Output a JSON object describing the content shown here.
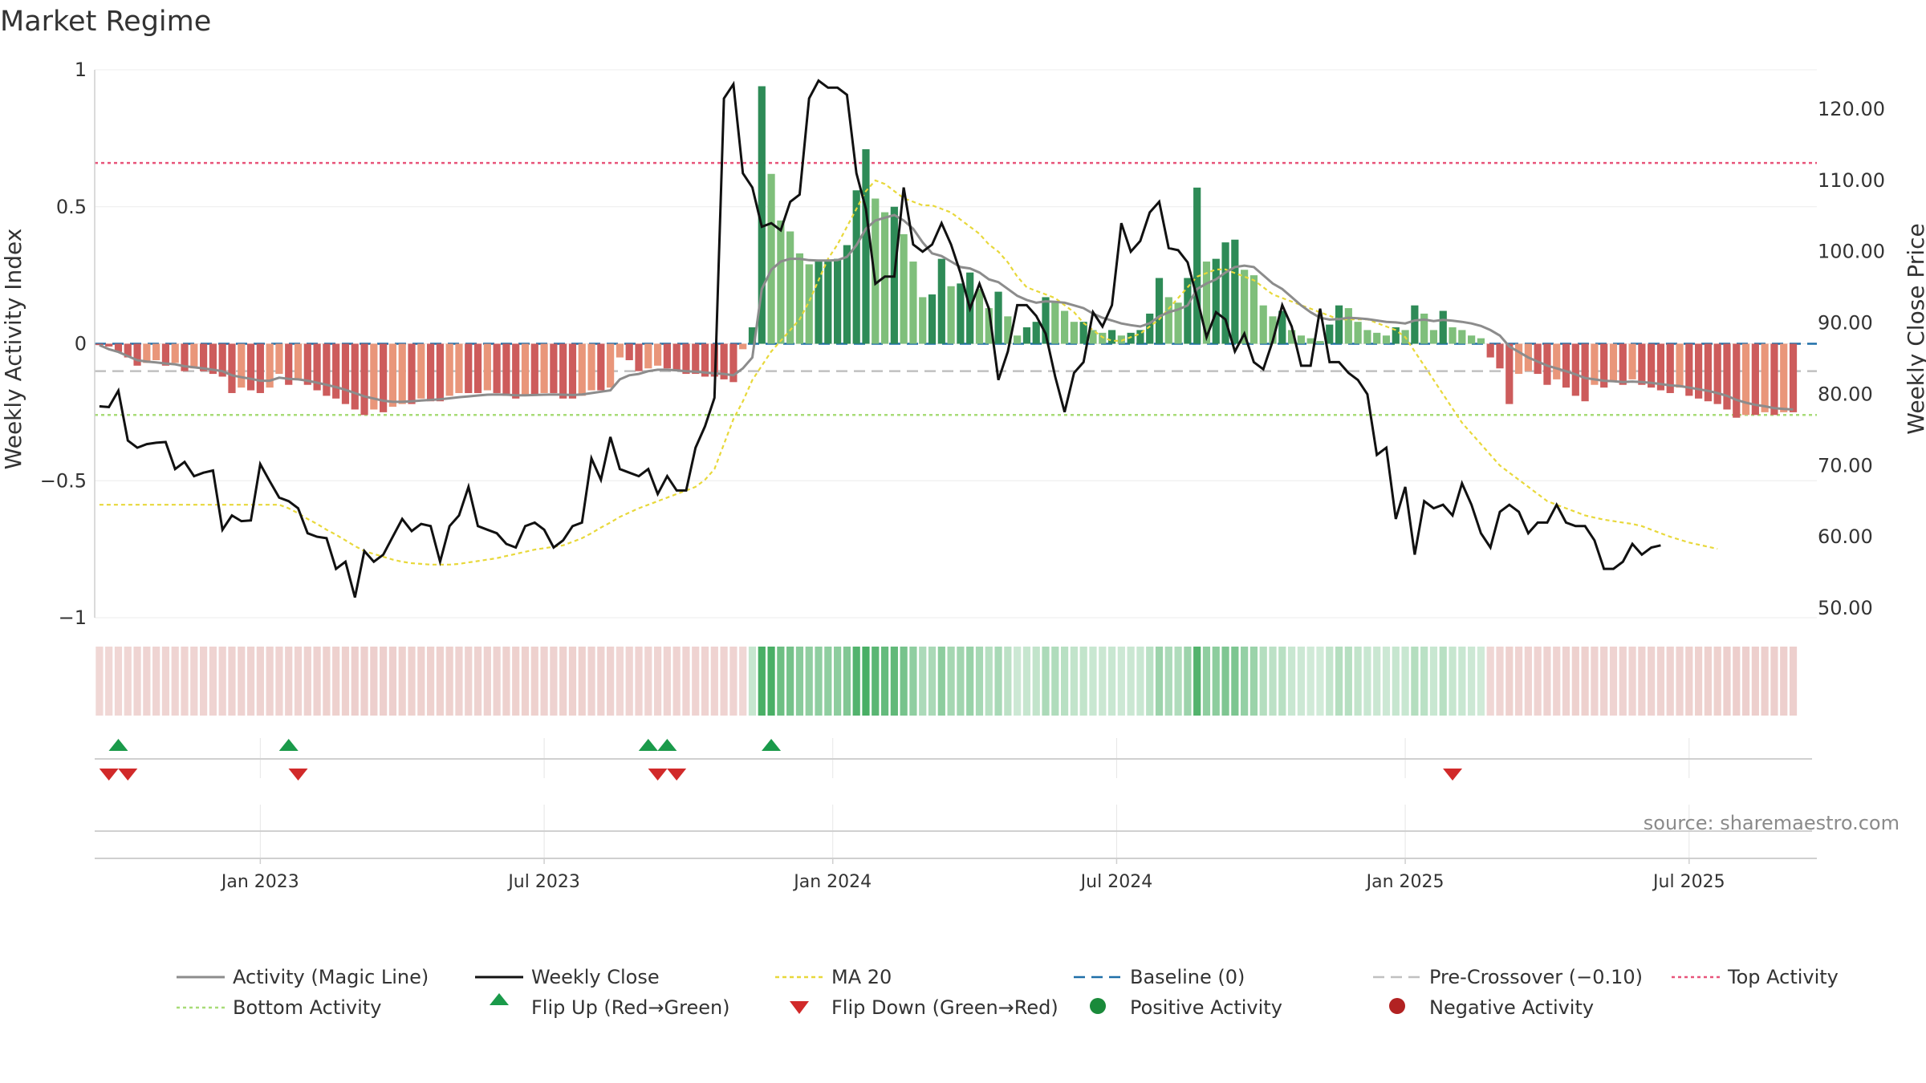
{
  "chart_data": {
    "type": "bar",
    "title": "Market Regime",
    "ylabel_left": "Weekly Activity Index",
    "ylabel_right": "Weekly Close Price",
    "ylim_left": [
      -1,
      1
    ],
    "ylim_right": [
      48,
      125
    ],
    "left_ticks": [
      "1",
      "0.5",
      "0",
      "−0.5",
      "−1"
    ],
    "left_tick_values": [
      1,
      0.5,
      0,
      -0.5,
      -1
    ],
    "right_ticks": [
      "120.00",
      "110.00",
      "100.00",
      "90.00",
      "80.00",
      "70.00",
      "60.00",
      "50.00"
    ],
    "right_tick_values": [
      120,
      110,
      100,
      90,
      80,
      70,
      60,
      50
    ],
    "x_ticks": [
      "Jan 2023",
      "Jul 2023",
      "Jan 2024",
      "Jul 2024",
      "Jan 2025",
      "Jul 2025"
    ],
    "x_tick_weeks": [
      17.5,
      47.5,
      78,
      108,
      138.5,
      168.5
    ],
    "n_weeks": 182,
    "activity_index": [
      -0.005,
      -0.01,
      -0.03,
      -0.05,
      -0.08,
      -0.07,
      -0.06,
      -0.08,
      -0.07,
      -0.1,
      -0.09,
      -0.1,
      -0.11,
      -0.12,
      -0.18,
      -0.16,
      -0.17,
      -0.18,
      -0.16,
      -0.11,
      -0.15,
      -0.13,
      -0.15,
      -0.17,
      -0.19,
      -0.2,
      -0.22,
      -0.24,
      -0.26,
      -0.24,
      -0.25,
      -0.23,
      -0.22,
      -0.22,
      -0.2,
      -0.21,
      -0.21,
      -0.19,
      -0.18,
      -0.18,
      -0.18,
      -0.17,
      -0.18,
      -0.19,
      -0.2,
      -0.19,
      -0.19,
      -0.18,
      -0.18,
      -0.2,
      -0.2,
      -0.19,
      -0.17,
      -0.17,
      -0.16,
      -0.05,
      -0.06,
      -0.1,
      -0.09,
      -0.08,
      -0.09,
      -0.1,
      -0.11,
      -0.11,
      -0.12,
      -0.12,
      -0.13,
      -0.14,
      -0.02,
      0.06,
      0.94,
      0.62,
      0.45,
      0.41,
      0.33,
      0.29,
      0.3,
      0.3,
      0.31,
      0.36,
      0.56,
      0.71,
      0.53,
      0.48,
      0.5,
      0.4,
      0.3,
      0.17,
      0.18,
      0.31,
      0.21,
      0.22,
      0.26,
      0.2,
      0.13,
      0.19,
      0.1,
      0.03,
      0.06,
      0.08,
      0.17,
      0.15,
      0.12,
      0.08,
      0.08,
      0.05,
      0.04,
      0.05,
      0.03,
      0.04,
      0.05,
      0.11,
      0.24,
      0.17,
      0.15,
      0.24,
      0.57,
      0.3,
      0.31,
      0.37,
      0.38,
      0.27,
      0.25,
      0.14,
      0.1,
      0.12,
      0.05,
      0.03,
      0.02,
      0.01,
      0.07,
      0.14,
      0.13,
      0.08,
      0.05,
      0.04,
      0.03,
      0.06,
      0.05,
      0.14,
      0.11,
      0.05,
      0.12,
      0.06,
      0.05,
      0.03,
      0.02,
      -0.05,
      -0.09,
      -0.22,
      -0.11,
      -0.1,
      -0.11,
      -0.15,
      -0.13,
      -0.16,
      -0.19,
      -0.21,
      -0.15,
      -0.16,
      -0.14,
      -0.15,
      -0.13,
      -0.15,
      -0.16,
      -0.17,
      -0.18,
      -0.16,
      -0.19,
      -0.2,
      -0.21,
      -0.22,
      -0.24,
      -0.27,
      -0.26,
      -0.26,
      -0.25,
      -0.26,
      -0.25,
      -0.25
    ],
    "magic_line": [
      -0.005,
      -0.02,
      -0.03,
      -0.045,
      -0.06,
      -0.065,
      -0.068,
      -0.072,
      -0.075,
      -0.082,
      -0.086,
      -0.09,
      -0.095,
      -0.1,
      -0.115,
      -0.122,
      -0.128,
      -0.135,
      -0.135,
      -0.124,
      -0.128,
      -0.13,
      -0.135,
      -0.142,
      -0.15,
      -0.158,
      -0.168,
      -0.18,
      -0.192,
      -0.2,
      -0.208,
      -0.212,
      -0.212,
      -0.21,
      -0.207,
      -0.205,
      -0.203,
      -0.199,
      -0.195,
      -0.192,
      -0.189,
      -0.186,
      -0.185,
      -0.186,
      -0.188,
      -0.188,
      -0.187,
      -0.186,
      -0.185,
      -0.186,
      -0.187,
      -0.185,
      -0.18,
      -0.175,
      -0.17,
      -0.13,
      -0.115,
      -0.11,
      -0.1,
      -0.095,
      -0.095,
      -0.097,
      -0.1,
      -0.102,
      -0.105,
      -0.108,
      -0.11,
      -0.115,
      -0.09,
      -0.05,
      0.2,
      0.27,
      0.3,
      0.31,
      0.31,
      0.305,
      0.304,
      0.304,
      0.305,
      0.317,
      0.36,
      0.42,
      0.45,
      0.46,
      0.47,
      0.45,
      0.42,
      0.37,
      0.33,
      0.32,
      0.3,
      0.28,
      0.275,
      0.26,
      0.235,
      0.225,
      0.2,
      0.175,
      0.16,
      0.15,
      0.155,
      0.153,
      0.15,
      0.14,
      0.13,
      0.11,
      0.095,
      0.085,
      0.074,
      0.068,
      0.063,
      0.075,
      0.1,
      0.115,
      0.125,
      0.14,
      0.2,
      0.22,
      0.235,
      0.26,
      0.28,
      0.285,
      0.28,
      0.25,
      0.22,
      0.2,
      0.17,
      0.14,
      0.115,
      0.095,
      0.088,
      0.09,
      0.095,
      0.093,
      0.09,
      0.085,
      0.08,
      0.078,
      0.074,
      0.085,
      0.088,
      0.083,
      0.087,
      0.084,
      0.08,
      0.074,
      0.065,
      0.05,
      0.03,
      -0.01,
      -0.03,
      -0.05,
      -0.065,
      -0.08,
      -0.09,
      -0.1,
      -0.112,
      -0.125,
      -0.13,
      -0.135,
      -0.137,
      -0.14,
      -0.138,
      -0.14,
      -0.143,
      -0.147,
      -0.152,
      -0.154,
      -0.16,
      -0.166,
      -0.172,
      -0.18,
      -0.19,
      -0.205,
      -0.215,
      -0.223,
      -0.228,
      -0.235,
      -0.238,
      -0.24
    ],
    "weekly_close": [
      78.3,
      78.2,
      80.5,
      73.5,
      72.5,
      73,
      73.2,
      73.3,
      69.5,
      70.5,
      68.5,
      69,
      69.3,
      61,
      63,
      62.2,
      62.3,
      70.2,
      67.8,
      65.5,
      65,
      64,
      60.5,
      60,
      59.8,
      55.5,
      56.5,
      51.5,
      58,
      56.5,
      57.5,
      60,
      62.5,
      60.8,
      61.8,
      61.5,
      56.5,
      61.5,
      63,
      67,
      61.5,
      61,
      60.5,
      59,
      58.5,
      61.5,
      62,
      61,
      58.5,
      59.5,
      61.5,
      62,
      71,
      68,
      74,
      69.5,
      69,
      68.5,
      69.5,
      66,
      68.5,
      66.5,
      66.5,
      72.5,
      75.5,
      79.5,
      121.5,
      123.5,
      111,
      109,
      103.5,
      104,
      103,
      107,
      108,
      121.5,
      124,
      123,
      123,
      122,
      111,
      106,
      95.5,
      96.5,
      96.5,
      109,
      101,
      100,
      101,
      104,
      101,
      97,
      92,
      95.5,
      92,
      82,
      86,
      92.5,
      92.5,
      91,
      88.5,
      82.5,
      77.5,
      83,
      84.5,
      91.5,
      89.5,
      92.5,
      104,
      100,
      101.5,
      105.5,
      107,
      100.5,
      100.2,
      98.5,
      93.5,
      88,
      91.5,
      90.5,
      86,
      88.5,
      84.5,
      83.5,
      87.5,
      92.5,
      89.5,
      84,
      84,
      92,
      84.5,
      84.5,
      83,
      82,
      80,
      71.5,
      72.5,
      62.5,
      67,
      57.5,
      65,
      64,
      64.5,
      63,
      67.5,
      64.5,
      60.5,
      58.5,
      63.5,
      64.5,
      63.5,
      60.5,
      62,
      62,
      64.5,
      62,
      61.5,
      61.5,
      59.5,
      55.5,
      55.5,
      56.5,
      59,
      57.5,
      58.5,
      58.8
    ],
    "ma20": [
      64.5,
      64.5,
      64.5,
      64.5,
      64.5,
      64.5,
      64.5,
      64.5,
      64.5,
      64.5,
      64.5,
      64.5,
      64.5,
      64.5,
      64.5,
      64.5,
      64.5,
      64.5,
      64.5,
      64.5,
      64,
      63.3,
      62.5,
      61.8,
      61,
      60.3,
      59.5,
      58.7,
      58,
      57.6,
      57.2,
      56.8,
      56.5,
      56.3,
      56.2,
      56.1,
      56.1,
      56.1,
      56.2,
      56.4,
      56.6,
      56.8,
      57,
      57.3,
      57.6,
      57.9,
      58.2,
      58.4,
      58.6,
      58.8,
      59.3,
      59.8,
      60.5,
      61.3,
      62,
      62.8,
      63.4,
      64,
      64.5,
      65,
      65.5,
      66,
      66.5,
      67,
      68,
      69.5,
      73,
      76.5,
      79,
      82,
      84,
      86,
      87.5,
      89,
      90.5,
      93,
      96,
      99,
      101,
      103.5,
      106,
      108.5,
      110,
      109.5,
      108.5,
      107.5,
      107,
      106.5,
      106.5,
      106,
      105.5,
      104.5,
      103.5,
      102.5,
      101,
      100,
      98.5,
      96.5,
      95,
      94.5,
      94,
      93.5,
      92.5,
      91.5,
      90,
      89,
      88,
      87.5,
      87.5,
      88,
      88.5,
      89.5,
      90.5,
      92,
      93.5,
      95,
      96.5,
      97,
      97.5,
      97.5,
      97,
      96.5,
      96,
      95,
      94,
      93.5,
      93,
      92.5,
      92,
      91.5,
      91,
      90.5,
      90.5,
      90.5,
      90.5,
      90,
      89.5,
      89,
      88,
      86,
      84,
      82,
      80,
      78,
      76,
      74.5,
      73,
      71.5,
      70,
      69,
      68,
      67,
      66,
      65,
      64.5,
      64,
      63.5,
      63,
      62.7,
      62.4,
      62.2,
      62,
      61.8,
      61.5,
      61,
      60.5,
      60,
      59.6,
      59.2,
      58.9,
      58.6,
      58.3
    ],
    "flip_up_weeks": [
      2,
      20,
      58,
      60,
      71
    ],
    "flip_down_weeks": [
      1,
      3,
      21,
      59,
      61,
      143
    ],
    "reference_levels": {
      "baseline": 0,
      "pre_crossover": -0.1,
      "top_activity": 0.66,
      "bottom_activity": -0.26
    },
    "legend": [
      "Activity (Magic Line)",
      "Weekly Close",
      "MA 20",
      "Baseline (0)",
      "Pre-Crossover (−0.10)",
      "Top Activity",
      "Bottom Activity",
      "Flip Up (Red→Green)",
      "Flip Down (Green→Red)",
      "Positive Activity",
      "Negative Activity"
    ],
    "legend_placement": "bottom",
    "grid": true
  },
  "colors": {
    "positive_dark": "#2e8b57",
    "positive_light": "#7fbf7b",
    "negative_dark": "#cd5c5c",
    "negative_light": "#e9967a",
    "magic_line": "#8c8c8c",
    "close": "#111111",
    "ma20": "#e8d83a",
    "baseline": "#1f6fa8",
    "pre_crossover": "#c0c0c0",
    "top": "#e8547a",
    "bottom": "#a8dc78",
    "flip_up": "#1a9a4a",
    "flip_down": "#d12a2a",
    "pos_dot": "#1a8a3a",
    "neg_dot": "#b22222"
  },
  "source_text": "source: sharemaestro.com"
}
